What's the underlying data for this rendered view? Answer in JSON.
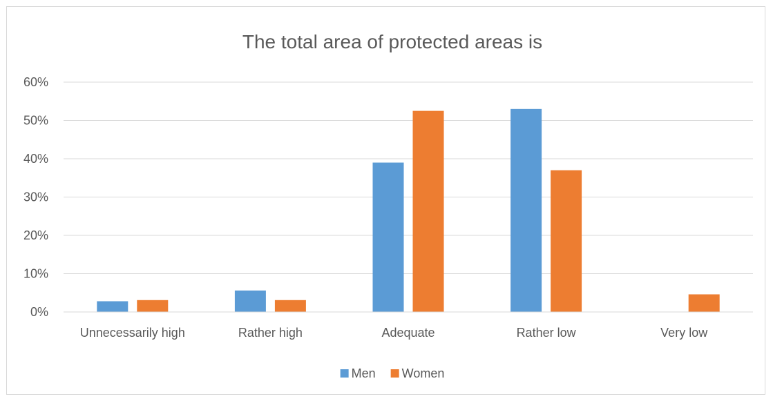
{
  "chart_data": {
    "type": "bar",
    "title": "The total area of protected areas is",
    "xlabel": "",
    "ylabel": "",
    "categories": [
      "Unnecessarily high",
      "Rather high",
      "Adequate",
      "Rather low",
      "Very low"
    ],
    "series": [
      {
        "name": "Men",
        "color": "#5b9bd5",
        "values": [
          0.028,
          0.056,
          0.39,
          0.53,
          0.0
        ]
      },
      {
        "name": "Women",
        "color": "#ed7d31",
        "values": [
          0.031,
          0.031,
          0.525,
          0.37,
          0.046
        ]
      }
    ],
    "yticks": [
      "0%",
      "10%",
      "20%",
      "30%",
      "40%",
      "50%",
      "60%"
    ],
    "ylim": [
      0,
      0.6
    ],
    "grid": true,
    "legend": "bottom"
  }
}
